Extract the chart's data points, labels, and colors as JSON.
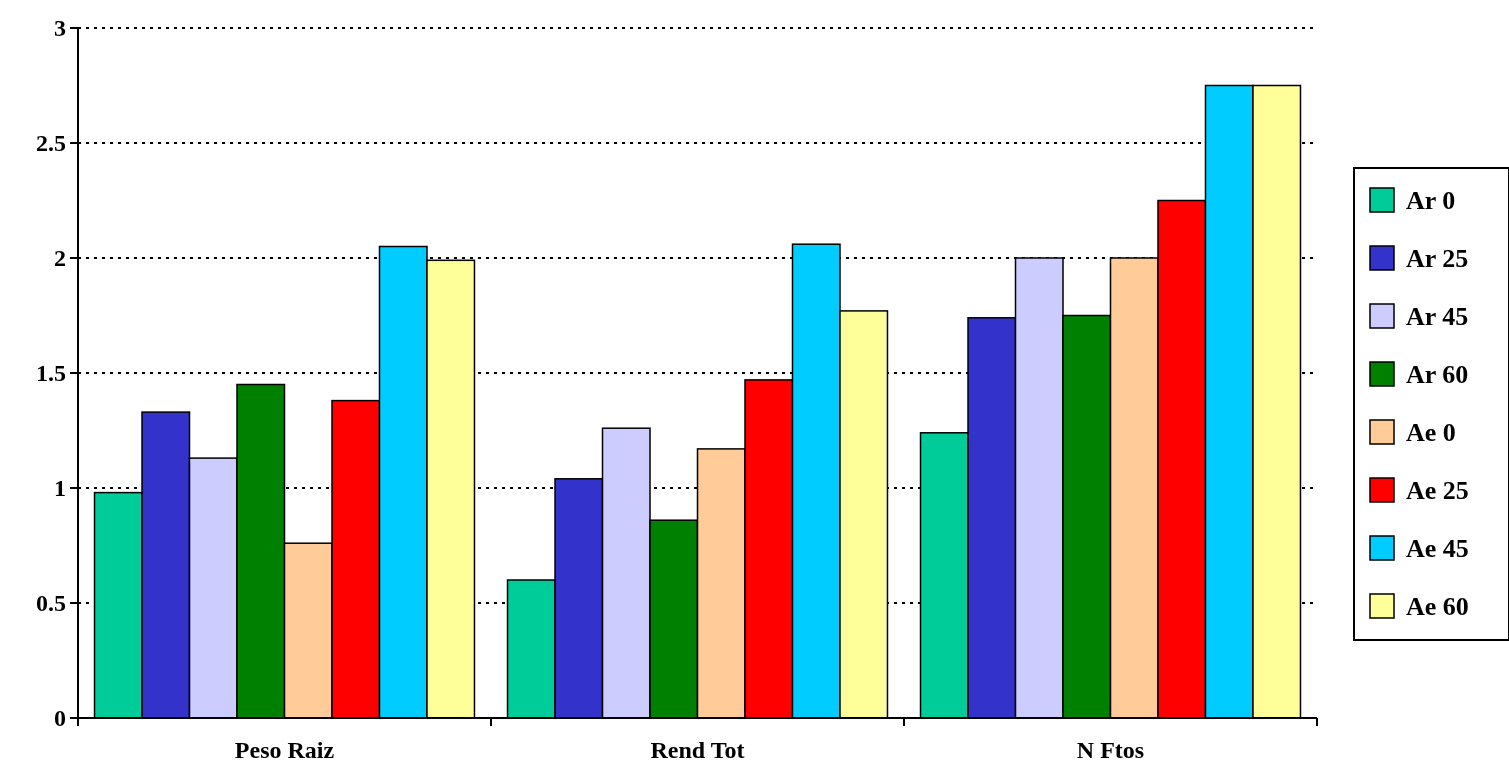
{
  "chart_data": {
    "type": "bar",
    "categories": [
      "Peso Raiz",
      "Rend Tot",
      "N Ftos"
    ],
    "series": [
      {
        "name": "Ar 0",
        "color": "#00cc99",
        "values": [
          0.98,
          0.6,
          1.24
        ]
      },
      {
        "name": "Ar 25",
        "color": "#3333cc",
        "values": [
          1.33,
          1.04,
          1.74
        ]
      },
      {
        "name": "Ar 45",
        "color": "#ccccff",
        "values": [
          1.13,
          1.26,
          2.0
        ]
      },
      {
        "name": "Ar 60",
        "color": "#008000",
        "values": [
          1.45,
          0.86,
          1.75
        ]
      },
      {
        "name": "Ae 0",
        "color": "#ffcc99",
        "values": [
          0.76,
          1.17,
          2.0
        ]
      },
      {
        "name": "Ae 25",
        "color": "#ff0000",
        "values": [
          1.38,
          1.47,
          2.25
        ]
      },
      {
        "name": "Ae 45",
        "color": "#00ccff",
        "values": [
          2.05,
          2.06,
          2.75
        ]
      },
      {
        "name": "Ae 60",
        "color": "#ffff99",
        "values": [
          1.99,
          1.77,
          2.75
        ]
      }
    ],
    "ylim": [
      0,
      3
    ],
    "yticks": [
      0,
      0.5,
      1,
      1.5,
      2,
      2.5,
      3
    ],
    "grid": "y",
    "legend": "right"
  }
}
